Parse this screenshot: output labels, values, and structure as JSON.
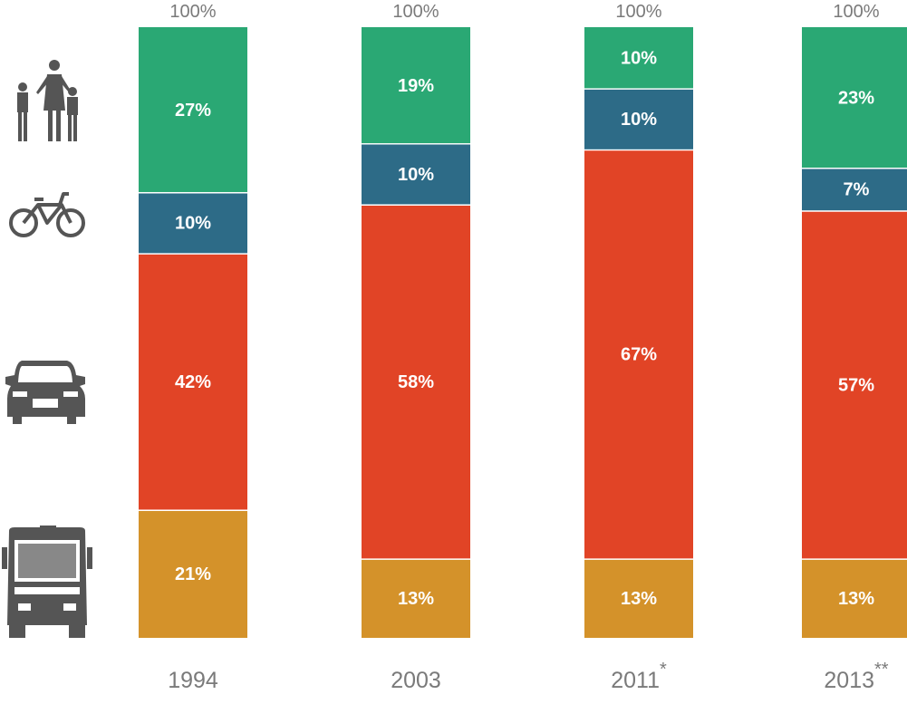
{
  "chart_data": {
    "type": "bar",
    "stacked": true,
    "categories": [
      "1994",
      "2003",
      "2011",
      "2013"
    ],
    "category_footnotes": [
      "",
      "",
      "*",
      "**"
    ],
    "total_labels": [
      "100%",
      "100%",
      "100%",
      "100%"
    ],
    "series": [
      {
        "icon": "bus-icon",
        "color": "#d4922a",
        "values": [
          21,
          13,
          13,
          13
        ]
      },
      {
        "icon": "car-icon",
        "color": "#e14426",
        "values": [
          42,
          58,
          67,
          57
        ]
      },
      {
        "icon": "bicycle-icon",
        "color": "#2d6b87",
        "values": [
          10,
          10,
          10,
          7
        ]
      },
      {
        "icon": "pedestrians-icon",
        "color": "#2aa874",
        "values": [
          27,
          19,
          10,
          23
        ]
      }
    ],
    "value_suffix": "%",
    "ylim": [
      0,
      100
    ],
    "grid": false,
    "legend": "left-icons"
  }
}
